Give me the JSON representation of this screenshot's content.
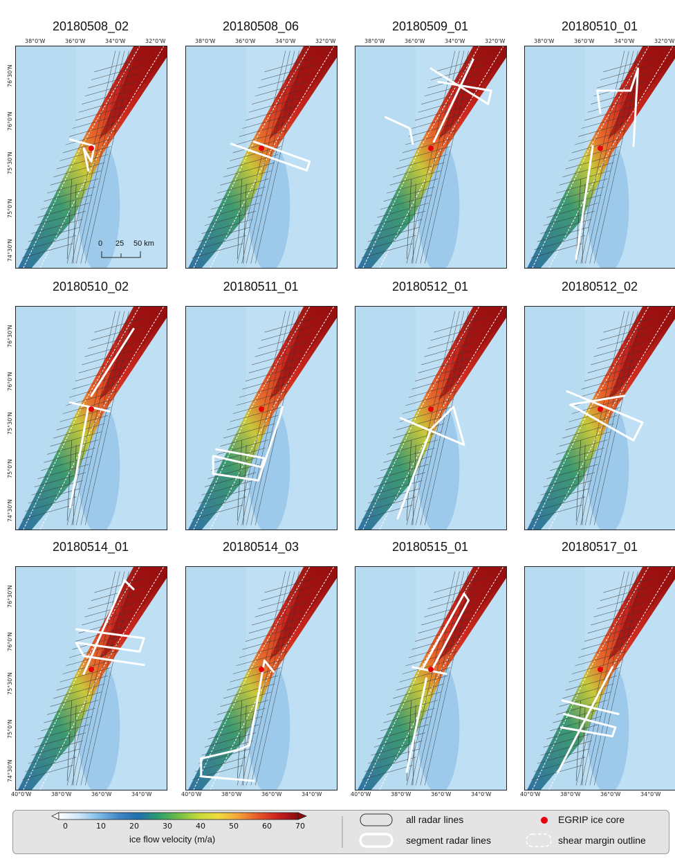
{
  "panels": [
    {
      "title": "20180508_02"
    },
    {
      "title": "20180508_06"
    },
    {
      "title": "20180509_01"
    },
    {
      "title": "20180510_01"
    },
    {
      "title": "20180510_02"
    },
    {
      "title": "20180511_01"
    },
    {
      "title": "20180512_01"
    },
    {
      "title": "20180512_02"
    },
    {
      "title": "20180514_01"
    },
    {
      "title": "20180514_03"
    },
    {
      "title": "20180515_01"
    },
    {
      "title": "20180517_01"
    }
  ],
  "top_lon_ticks": [
    "38°0'W",
    "36°0'W",
    "34°0'W",
    "32°0'W"
  ],
  "bottom_lon_ticks": [
    "40°0'W",
    "38°0'W",
    "36°0'W",
    "34°0'W"
  ],
  "lat_ticks": [
    "76°30'N",
    "76°0'N",
    "75°30'N",
    "75°0'N",
    "74°30'N"
  ],
  "scale_bar": {
    "labels": [
      "0",
      "25",
      "50 km"
    ]
  },
  "colorbar": {
    "label": "ice flow velocity (m/a)",
    "ticks": [
      "0",
      "10",
      "20",
      "30",
      "40",
      "50",
      "60",
      "70"
    ],
    "colors": [
      "#ffffff",
      "#cfe7f7",
      "#7fbbe8",
      "#3f86c8",
      "#1f6fb0",
      "#2c9e6e",
      "#6cbd45",
      "#c6d93a",
      "#f2dc3f",
      "#f5a33a",
      "#e8572a",
      "#c8201f",
      "#8b0c0c"
    ]
  },
  "legend": {
    "all_radar_lines": "all radar lines",
    "segment_radar_lines": "segment radar lines",
    "egrip_ice_core": "EGRIP ice core",
    "shear_margin": "shear margin outline",
    "egrip_color": "#e8000d"
  }
}
